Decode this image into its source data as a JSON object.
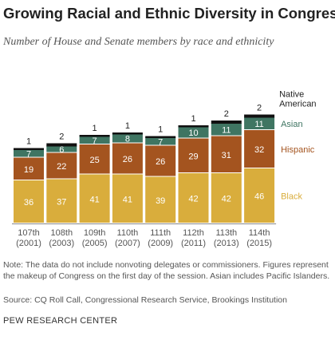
{
  "chart_data": {
    "type": "bar",
    "stacked": true,
    "title": "Growing Racial and Ethnic Diversity in Congress",
    "subtitle": "Number of House and Senate members by race and ethnicity",
    "categories": [
      {
        "session": "107th",
        "years": "(2001)"
      },
      {
        "session": "108th",
        "years": "(2003)"
      },
      {
        "session": "109th",
        "years": "(2005)"
      },
      {
        "session": "110th",
        "years": "(2007)"
      },
      {
        "session": "111th",
        "years": "(2009)"
      },
      {
        "session": "112th",
        "years": "(2011)"
      },
      {
        "session": "113th",
        "years": "(2013)"
      },
      {
        "session": "114th",
        "years": "(2015)"
      }
    ],
    "series": [
      {
        "name": "Black",
        "color": "#d9ad3c",
        "label_color": "#ffffff",
        "values": [
          36,
          37,
          41,
          41,
          39,
          42,
          42,
          46
        ]
      },
      {
        "name": "Hispanic",
        "color": "#a4541f",
        "label_color": "#ffffff",
        "values": [
          19,
          22,
          25,
          26,
          26,
          29,
          31,
          32
        ]
      },
      {
        "name": "Asian",
        "color": "#3f7562",
        "label_color": "#ffffff",
        "values": [
          7,
          6,
          7,
          8,
          7,
          10,
          11,
          11
        ]
      },
      {
        "name": "Native American",
        "color": "#111111",
        "label_color": "#222222",
        "values": [
          1,
          2,
          1,
          1,
          1,
          1,
          2,
          2
        ]
      }
    ],
    "legend": {
      "placement": "right of bars",
      "entries": [
        {
          "lines": [
            "Native",
            "American"
          ],
          "color": "#222222"
        },
        {
          "lines": [
            "Asian"
          ],
          "color": "#3f7562"
        },
        {
          "lines": [
            "Hispanic"
          ],
          "color": "#a4541f"
        },
        {
          "lines": [
            "Black"
          ],
          "color": "#d9ad3c"
        }
      ]
    },
    "grid": false
  },
  "footer": {
    "note": "Note: The data do not include nonvoting delegates or commissioners. Figures represent the makeup of Congress on the first day of the session. Asian includes Pacific Islanders.",
    "source": "Source: CQ Roll Call, Congressional Research Service, Brookings Institution",
    "brand": "PEW RESEARCH CENTER"
  }
}
